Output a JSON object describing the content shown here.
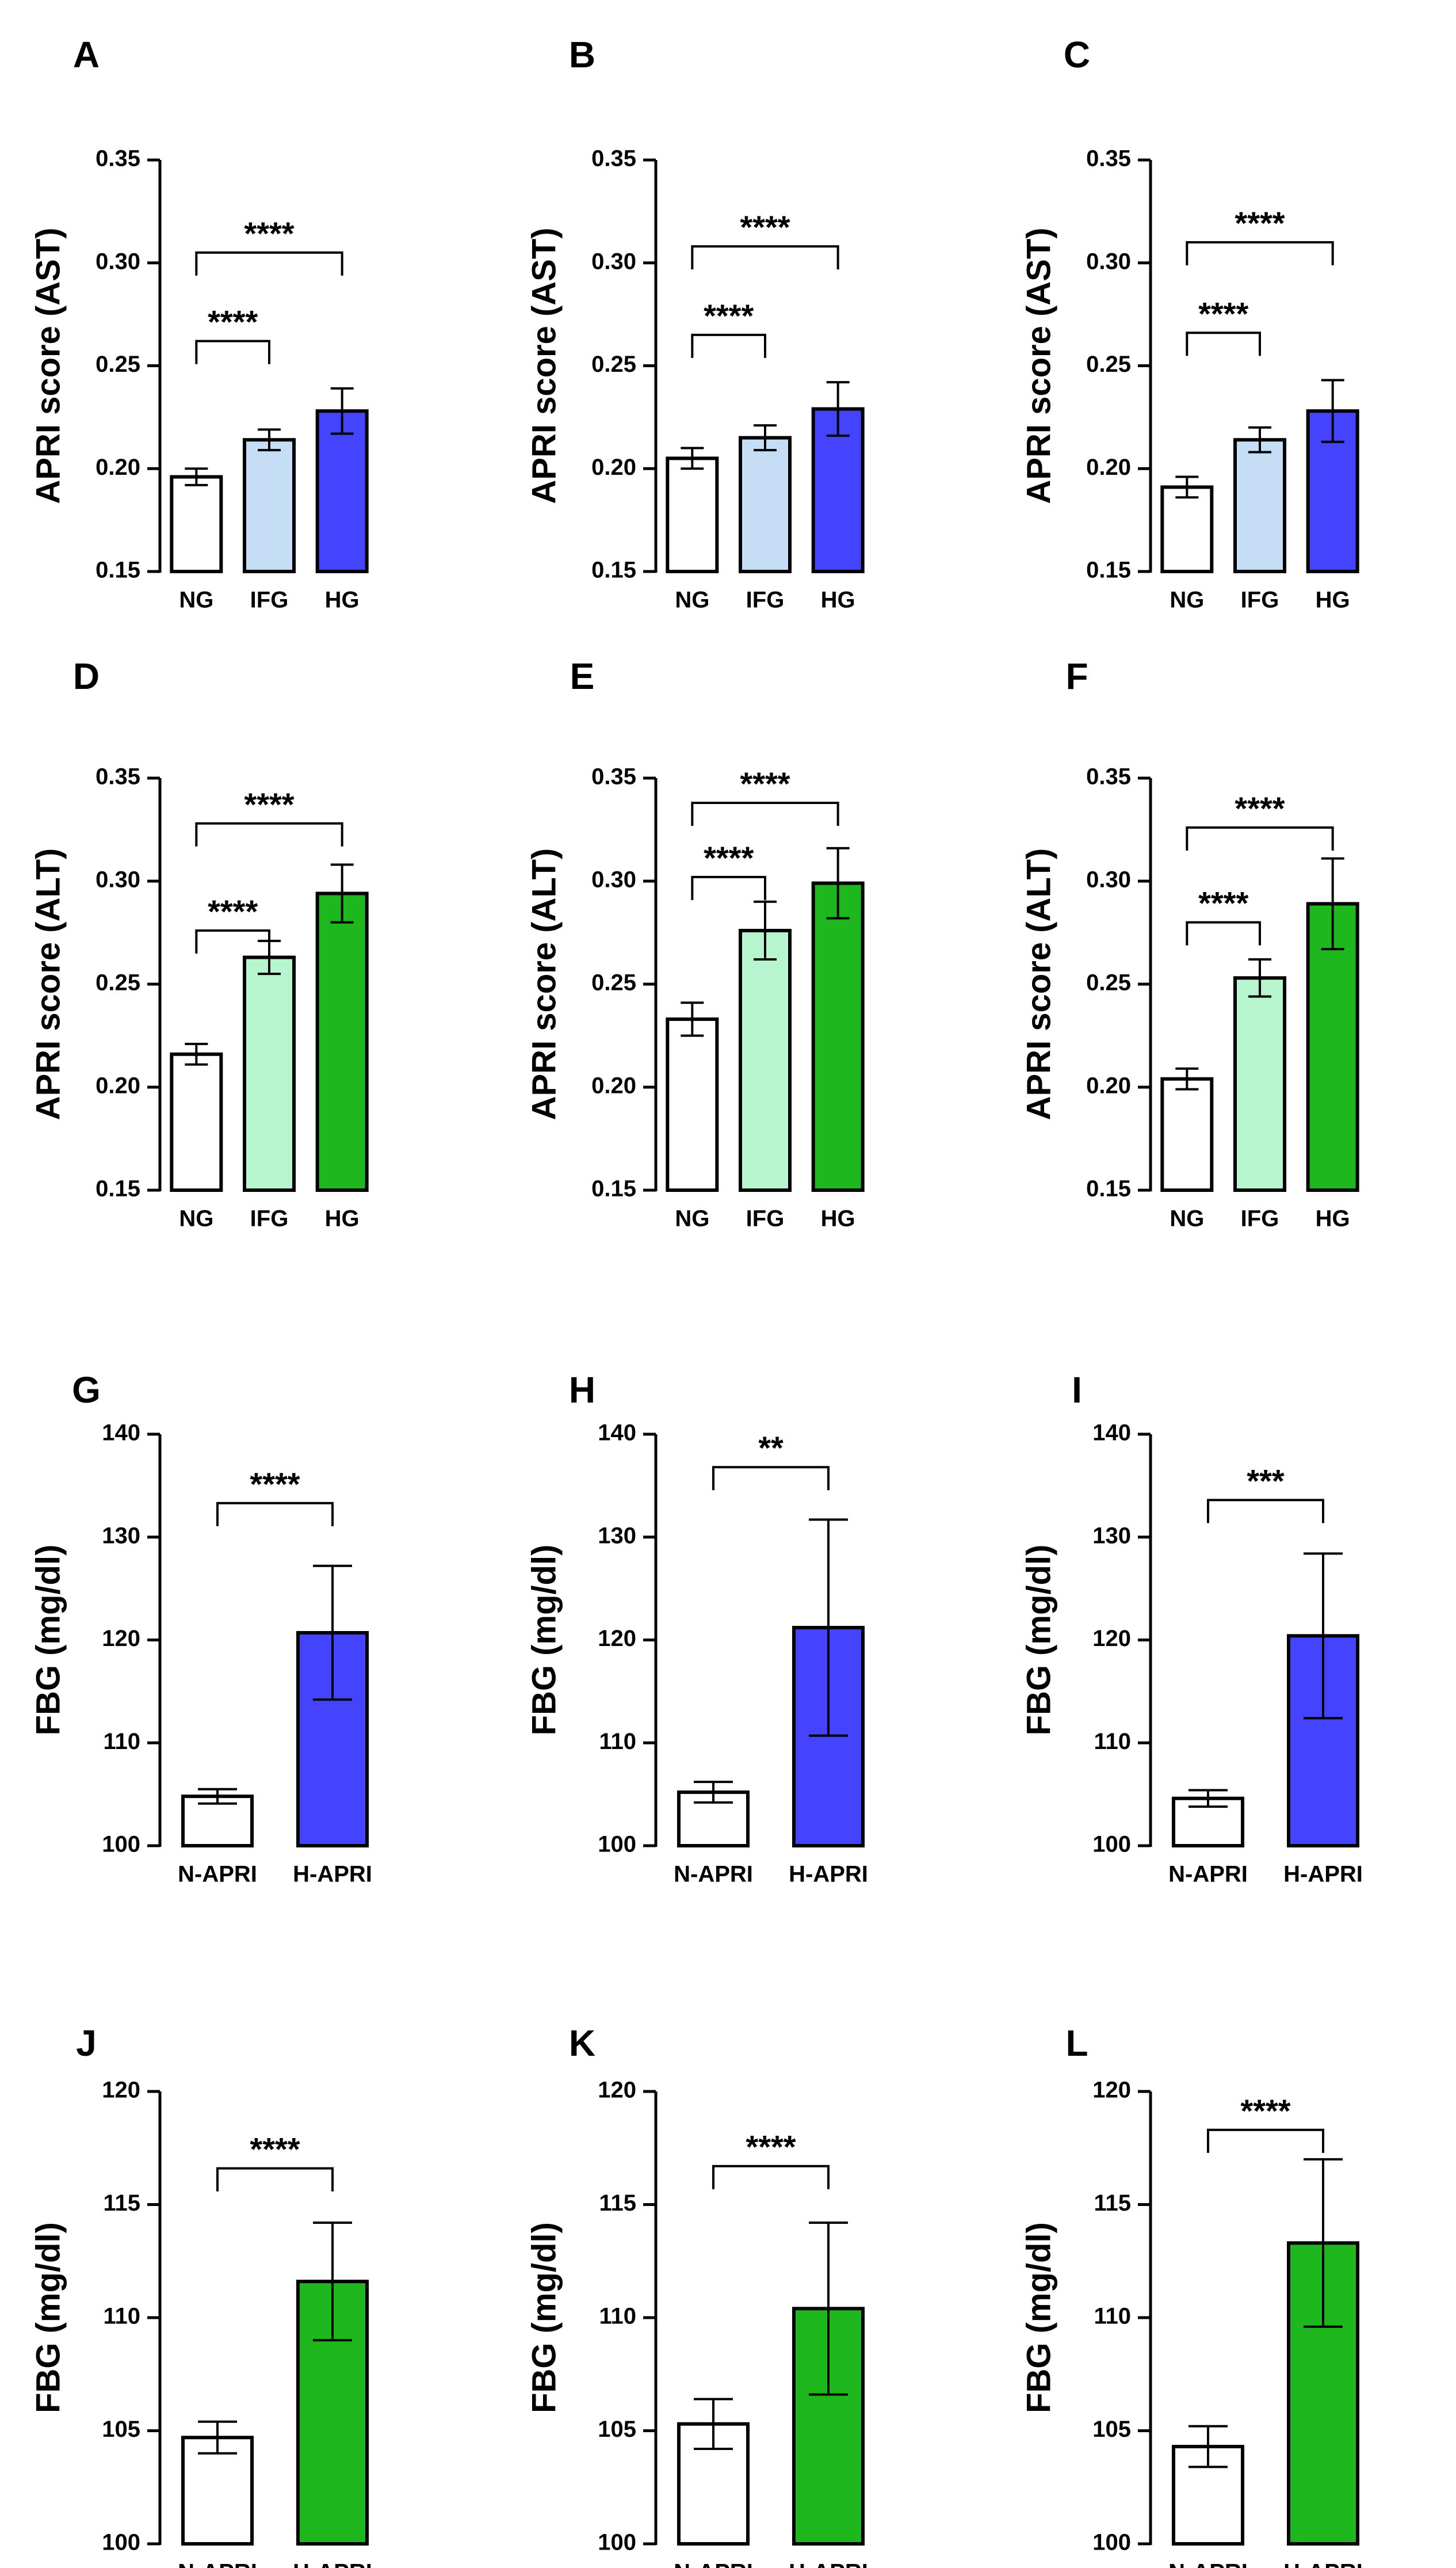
{
  "colors": {
    "white": "#ffffff",
    "light_blue": "#c5def6",
    "blue": "#4444ff",
    "light_green": "#b6f5cd",
    "green": "#1eb81e",
    "stroke": "#000000"
  },
  "chart_data": [
    {
      "panel": "A",
      "type": "bar",
      "ylabel": "APRI score (AST)",
      "ylim": [
        0.15,
        0.35
      ],
      "yticks": [
        "0.15",
        "0.20",
        "0.25",
        "0.30",
        "0.35"
      ],
      "categories": [
        "NG",
        "IFG",
        "HG"
      ],
      "values": [
        0.196,
        0.214,
        0.228
      ],
      "errors": [
        0.004,
        0.005,
        0.011
      ],
      "bar_colors": [
        "white",
        "light_blue",
        "blue"
      ],
      "comparisons": [
        {
          "from": 0,
          "to": 1,
          "label": "****",
          "y": 0.262
        },
        {
          "from": 0,
          "to": 2,
          "label": "****",
          "y": 0.305
        }
      ]
    },
    {
      "panel": "B",
      "type": "bar",
      "ylabel": "APRI score (AST)",
      "ylim": [
        0.15,
        0.35
      ],
      "yticks": [
        "0.15",
        "0.20",
        "0.25",
        "0.30",
        "0.35"
      ],
      "categories": [
        "NG",
        "IFG",
        "HG"
      ],
      "values": [
        0.205,
        0.215,
        0.229
      ],
      "errors": [
        0.005,
        0.006,
        0.013
      ],
      "bar_colors": [
        "white",
        "light_blue",
        "blue"
      ],
      "comparisons": [
        {
          "from": 0,
          "to": 1,
          "label": "****",
          "y": 0.265
        },
        {
          "from": 0,
          "to": 2,
          "label": "****",
          "y": 0.308
        }
      ]
    },
    {
      "panel": "C",
      "type": "bar",
      "ylabel": "APRI score (AST)",
      "ylim": [
        0.15,
        0.35
      ],
      "yticks": [
        "0.15",
        "0.20",
        "0.25",
        "0.30",
        "0.35"
      ],
      "categories": [
        "NG",
        "IFG",
        "HG"
      ],
      "values": [
        0.191,
        0.214,
        0.228
      ],
      "errors": [
        0.005,
        0.006,
        0.015
      ],
      "bar_colors": [
        "white",
        "light_blue",
        "blue"
      ],
      "comparisons": [
        {
          "from": 0,
          "to": 1,
          "label": "****",
          "y": 0.266
        },
        {
          "from": 0,
          "to": 2,
          "label": "****",
          "y": 0.31
        }
      ]
    },
    {
      "panel": "D",
      "type": "bar",
      "ylabel": "APRI score (ALT)",
      "ylim": [
        0.15,
        0.35
      ],
      "yticks": [
        "0.15",
        "0.20",
        "0.25",
        "0.30",
        "0.35"
      ],
      "categories": [
        "NG",
        "IFG",
        "HG"
      ],
      "values": [
        0.216,
        0.263,
        0.294
      ],
      "errors": [
        0.005,
        0.008,
        0.014
      ],
      "bar_colors": [
        "white",
        "light_green",
        "green"
      ],
      "comparisons": [
        {
          "from": 0,
          "to": 1,
          "label": "****",
          "y": 0.276
        },
        {
          "from": 0,
          "to": 2,
          "label": "****",
          "y": 0.328
        }
      ]
    },
    {
      "panel": "E",
      "type": "bar",
      "ylabel": "APRI score (ALT)",
      "ylim": [
        0.15,
        0.35
      ],
      "yticks": [
        "0.15",
        "0.20",
        "0.25",
        "0.30",
        "0.35"
      ],
      "categories": [
        "NG",
        "IFG",
        "HG"
      ],
      "values": [
        0.233,
        0.276,
        0.299
      ],
      "errors": [
        0.008,
        0.014,
        0.017
      ],
      "bar_colors": [
        "white",
        "light_green",
        "green"
      ],
      "comparisons": [
        {
          "from": 0,
          "to": 1,
          "label": "****",
          "y": 0.302
        },
        {
          "from": 0,
          "to": 2,
          "label": "****",
          "y": 0.338
        }
      ]
    },
    {
      "panel": "F",
      "type": "bar",
      "ylabel": "APRI score (ALT)",
      "ylim": [
        0.15,
        0.35
      ],
      "yticks": [
        "0.15",
        "0.20",
        "0.25",
        "0.30",
        "0.35"
      ],
      "categories": [
        "NG",
        "IFG",
        "HG"
      ],
      "values": [
        0.204,
        0.253,
        0.289
      ],
      "errors": [
        0.005,
        0.009,
        0.022
      ],
      "bar_colors": [
        "white",
        "light_green",
        "green"
      ],
      "comparisons": [
        {
          "from": 0,
          "to": 1,
          "label": "****",
          "y": 0.28
        },
        {
          "from": 0,
          "to": 2,
          "label": "****",
          "y": 0.326
        }
      ]
    },
    {
      "panel": "G",
      "type": "bar",
      "ylabel": "FBG (mg/dl)",
      "ylim": [
        100,
        140
      ],
      "yticks": [
        "100",
        "110",
        "120",
        "130",
        "140"
      ],
      "categories": [
        "N-APRI",
        "H-APRI"
      ],
      "values": [
        104.8,
        120.7
      ],
      "errors": [
        0.7,
        6.5
      ],
      "bar_colors": [
        "white",
        "blue"
      ],
      "comparisons": [
        {
          "from": 0,
          "to": 1,
          "label": "****",
          "y": 133.3
        }
      ]
    },
    {
      "panel": "H",
      "type": "bar",
      "ylabel": "FBG (mg/dl)",
      "ylim": [
        100,
        140
      ],
      "yticks": [
        "100",
        "110",
        "120",
        "130",
        "140"
      ],
      "categories": [
        "N-APRI",
        "H-APRI"
      ],
      "values": [
        105.2,
        121.2
      ],
      "errors": [
        1.0,
        10.5
      ],
      "bar_colors": [
        "white",
        "blue"
      ],
      "comparisons": [
        {
          "from": 0,
          "to": 1,
          "label": "**",
          "y": 136.8
        }
      ]
    },
    {
      "panel": "I",
      "type": "bar",
      "ylabel": "FBG (mg/dl)",
      "ylim": [
        100,
        140
      ],
      "yticks": [
        "100",
        "110",
        "120",
        "130",
        "140"
      ],
      "categories": [
        "N-APRI",
        "H-APRI"
      ],
      "values": [
        104.6,
        120.4
      ],
      "errors": [
        0.8,
        8.0
      ],
      "bar_colors": [
        "white",
        "blue"
      ],
      "comparisons": [
        {
          "from": 0,
          "to": 1,
          "label": "***",
          "y": 133.6
        }
      ]
    },
    {
      "panel": "J",
      "type": "bar",
      "ylabel": "FBG (mg/dl)",
      "ylim": [
        100,
        120
      ],
      "yticks": [
        "100",
        "105",
        "110",
        "115",
        "120"
      ],
      "categories": [
        "N-APRI",
        "H-APRI"
      ],
      "values": [
        104.7,
        111.6
      ],
      "errors": [
        0.7,
        2.6
      ],
      "bar_colors": [
        "white",
        "green"
      ],
      "comparisons": [
        {
          "from": 0,
          "to": 1,
          "label": "****",
          "y": 116.6
        }
      ]
    },
    {
      "panel": "K",
      "type": "bar",
      "ylabel": "FBG (mg/dl)",
      "ylim": [
        100,
        120
      ],
      "yticks": [
        "100",
        "105",
        "110",
        "115",
        "120"
      ],
      "categories": [
        "N-APRI",
        "H-APRI"
      ],
      "values": [
        105.3,
        110.4
      ],
      "errors": [
        1.1,
        3.8
      ],
      "bar_colors": [
        "white",
        "green"
      ],
      "comparisons": [
        {
          "from": 0,
          "to": 1,
          "label": "****",
          "y": 116.7
        }
      ]
    },
    {
      "panel": "L",
      "type": "bar",
      "ylabel": "FBG (mg/dl)",
      "ylim": [
        100,
        120
      ],
      "yticks": [
        "100",
        "105",
        "110",
        "115",
        "120"
      ],
      "categories": [
        "N-APRI",
        "H-APRI"
      ],
      "values": [
        104.3,
        113.3
      ],
      "errors": [
        0.9,
        3.7
      ],
      "bar_colors": [
        "white",
        "green"
      ],
      "comparisons": [
        {
          "from": 0,
          "to": 1,
          "label": "****",
          "y": 118.3
        }
      ]
    }
  ]
}
